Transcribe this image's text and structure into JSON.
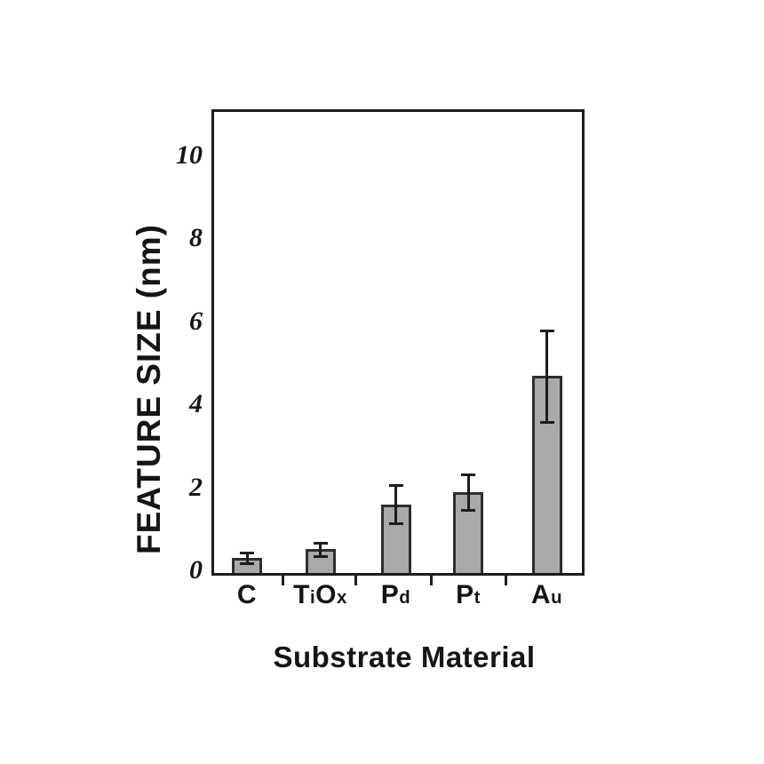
{
  "chart_data": {
    "type": "bar",
    "title": "",
    "categories": [
      "C",
      "TiOx",
      "Pd",
      "Pt",
      "Au"
    ],
    "values": [
      0.37,
      0.57,
      1.65,
      1.95,
      4.75
    ],
    "error_bars": [
      0.13,
      0.16,
      0.46,
      0.42,
      1.1
    ],
    "xlabel": "Substrate Material",
    "ylabel": "FEATURE SIZE (nm)",
    "ylim": [
      0,
      11.1
    ],
    "yticks": [
      0,
      2,
      4,
      6,
      8,
      10
    ],
    "ytick_labels": [
      "0",
      "2",
      "4",
      "6",
      "8",
      "10"
    ],
    "grid": false,
    "legend": "none",
    "bar_fill_color": "#a9a9a9",
    "bar_border_color": "#2e2e2e",
    "axis_color": "#1d1d1d"
  }
}
